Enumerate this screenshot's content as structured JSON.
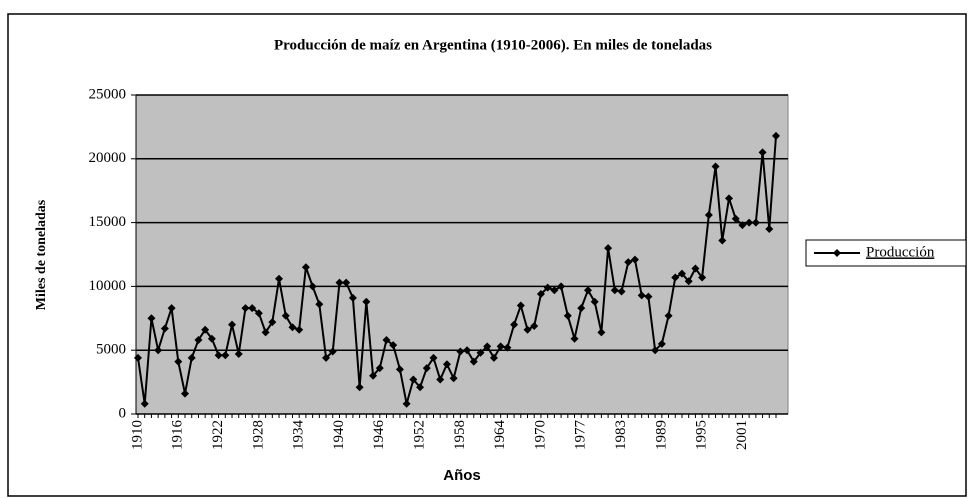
{
  "chart_data": {
    "type": "line",
    "title": "Producción de maíz en Argentina (1910-2006). En miles de toneladas",
    "x_label": "Años",
    "y_label": "Miles de toneladas",
    "categories": [
      "1910",
      null,
      null,
      null,
      null,
      null,
      "1916",
      null,
      null,
      null,
      null,
      null,
      "1922",
      null,
      null,
      null,
      null,
      null,
      "1928",
      null,
      null,
      null,
      null,
      null,
      "1934",
      null,
      null,
      null,
      null,
      null,
      "1940",
      null,
      null,
      null,
      null,
      null,
      "1946",
      null,
      null,
      null,
      null,
      null,
      "1952",
      null,
      null,
      null,
      null,
      null,
      "1958",
      null,
      null,
      null,
      null,
      null,
      "1964",
      null,
      null,
      null,
      null,
      null,
      "1970",
      null,
      null,
      null,
      null,
      null,
      "1977",
      null,
      null,
      null,
      null,
      null,
      "1983",
      null,
      null,
      null,
      null,
      null,
      "1989",
      null,
      null,
      null,
      null,
      null,
      "1995",
      null,
      null,
      null,
      null,
      null,
      "2001",
      null,
      null,
      null,
      null,
      null
    ],
    "series": [
      {
        "name": "Producción",
        "color": "#000000",
        "values": [
          4400,
          800,
          7500,
          5000,
          6700,
          8300,
          4100,
          1600,
          4400,
          5800,
          6600,
          5900,
          4600,
          4600,
          7000,
          4700,
          8300,
          8300,
          7900,
          6400,
          7200,
          10600,
          7700,
          6800,
          6600,
          11500,
          10000,
          8600,
          4400,
          4900,
          10300,
          10300,
          9100,
          2100,
          8800,
          3000,
          3600,
          5800,
          5400,
          3500,
          800,
          2700,
          2100,
          3600,
          4400,
          2700,
          3900,
          2800,
          4900,
          5000,
          4100,
          4800,
          5300,
          4400,
          5300,
          5200,
          7000,
          8500,
          6600,
          6900,
          9400,
          9900,
          9700,
          10000,
          7700,
          5900,
          8300,
          9700,
          8800,
          6400,
          13000,
          9700,
          9600,
          11900,
          12100,
          9300,
          9200,
          5000,
          5500,
          7700,
          10700,
          11000,
          10400,
          11400,
          10700,
          15600,
          19400,
          13600,
          16900,
          15300,
          14800,
          15000,
          15000,
          20500,
          14500,
          21800
        ]
      }
    ],
    "ylim": [
      0,
      25000
    ],
    "yticks": [
      0,
      5000,
      10000,
      15000,
      20000,
      25000
    ],
    "grid": true,
    "legend": "right",
    "plot_background": "#c0c0c0"
  }
}
